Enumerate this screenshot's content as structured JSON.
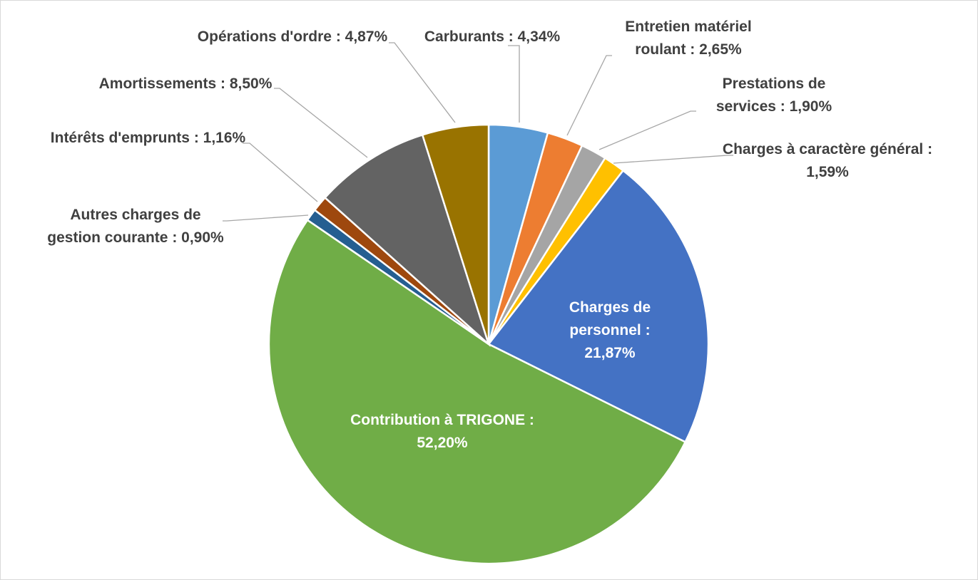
{
  "chart_data": {
    "type": "pie",
    "categories": [
      "Carburants",
      "Entretien matériel roulant",
      "Prestations de services",
      "Charges à caractère général",
      "Charges de personnel",
      "Contribution à TRIGONE",
      "Autres charges de gestion courante",
      "Intérêts d'emprunts",
      "Amortissements",
      "Opérations d'ordre"
    ],
    "values": [
      4.34,
      2.65,
      1.9,
      1.59,
      21.87,
      52.2,
      0.9,
      1.16,
      8.5,
      4.87
    ],
    "value_labels": [
      "4,34%",
      "2,65%",
      "1,90%",
      "1,59%",
      "21,87%",
      "52,20%",
      "0,90%",
      "1,16%",
      "8,50%",
      "4,87%"
    ],
    "label_separator": " : ",
    "colors": [
      "#5b9bd5",
      "#ed7d31",
      "#a5a5a5",
      "#ffc000",
      "#4472c4",
      "#70ad47",
      "#255e91",
      "#9e480e",
      "#636363",
      "#997300"
    ]
  }
}
